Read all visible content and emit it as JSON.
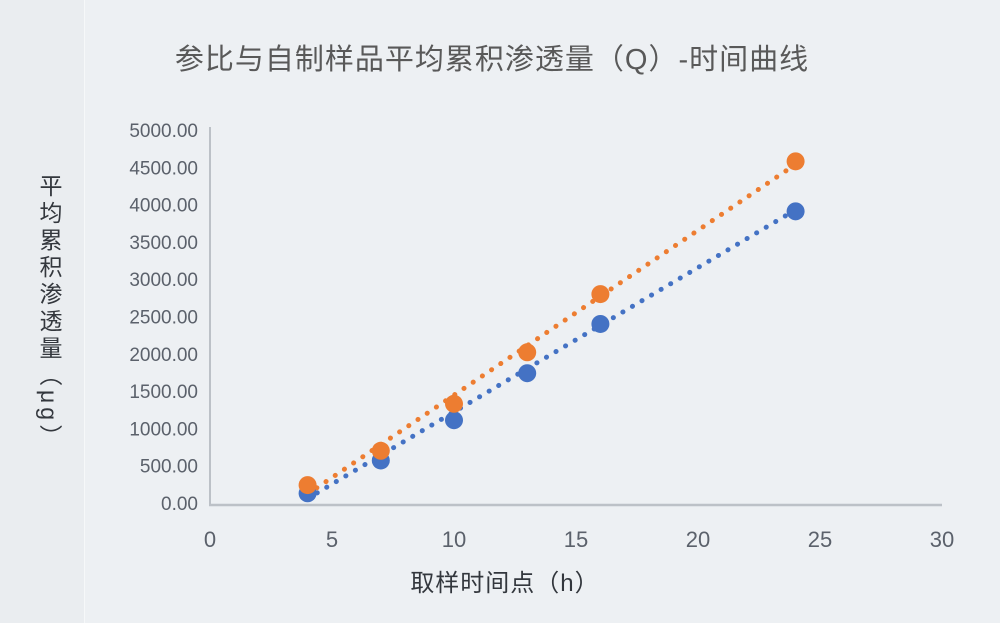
{
  "page": {
    "background_color": "#edf0f3"
  },
  "chart_data": {
    "type": "scatter",
    "title": "参比与自制样品平均累积渗透量（Q）-时间曲线",
    "xlabel": "取样时间点（h）",
    "ylabel": "平均累积渗透量（μg）",
    "xlim": [
      0,
      30
    ],
    "ylim": [
      0,
      5000
    ],
    "grid": "off",
    "legend": "none",
    "x_ticks": [
      "0",
      "5",
      "10",
      "15",
      "20",
      "25",
      "30"
    ],
    "y_ticks": [
      "0.00",
      "500.00",
      "1000.00",
      "1500.00",
      "2000.00",
      "2500.00",
      "3000.00",
      "3500.00",
      "4000.00",
      "4500.00",
      "5000.00"
    ],
    "x": [
      4,
      7,
      10,
      13,
      16,
      24
    ],
    "series": [
      {
        "name": "blue",
        "color": "#4472C4",
        "marker": "circle",
        "values": [
          130,
          570,
          1110,
          1740,
          2400,
          3910
        ],
        "trendline": {
          "style": "dotted",
          "x_start": 4,
          "y_start": 60,
          "x_end": 24,
          "y_end": 3930
        }
      },
      {
        "name": "orange",
        "color": "#ED7D31",
        "marker": "circle",
        "values": [
          240,
          700,
          1330,
          2020,
          2800,
          4580
        ],
        "trendline": {
          "style": "dotted",
          "x_start": 4,
          "y_start": 120,
          "x_end": 24,
          "y_end": 4540
        }
      }
    ],
    "axis_color": "#bcc1c7"
  }
}
